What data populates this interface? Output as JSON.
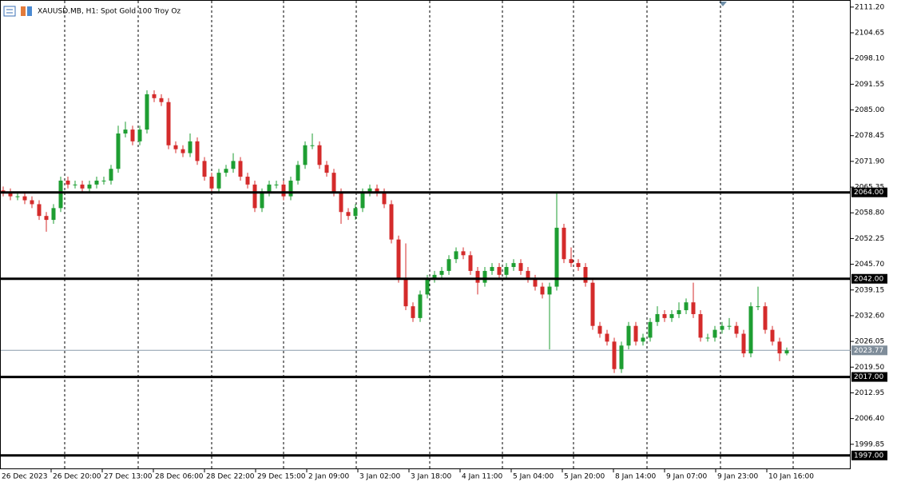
{
  "chart_data": {
    "type": "candlestick",
    "title": "XAUUSD.MB, H1:  Spot Gold 100 Troy Oz",
    "up_color": "#1e9e32",
    "down_color": "#d42b2b",
    "open": [
      2064.5,
      2064,
      2063,
      2063,
      2062,
      2061,
      2058,
      2057,
      2060,
      2067,
      2066,
      2066,
      2065,
      2066,
      2067,
      2067,
      2070,
      2079,
      2080,
      2077,
      2080,
      2089,
      2088,
      2087,
      2076,
      2075,
      2074,
      2077,
      2072,
      2068,
      2065,
      2069,
      2070,
      2072,
      2068,
      2066,
      2060,
      2064,
      2066,
      2066,
      2063,
      2067,
      2071,
      2076,
      2076,
      2071,
      2069,
      2064,
      2059,
      2058,
      2060,
      2064,
      2065,
      2064,
      2061,
      2052,
      2042,
      2035,
      2032,
      2038,
      2042,
      2043,
      2044,
      2047,
      2049,
      2048,
      2044,
      2041,
      2044,
      2045,
      2043,
      2045,
      2046,
      2044,
      2042,
      2040,
      2038,
      2040,
      2055,
      2047,
      2046,
      2045,
      2041,
      2030,
      2028,
      2026,
      2019,
      2025,
      2030,
      2026,
      2027,
      2031,
      2033,
      2032,
      2033,
      2034,
      2036,
      2033,
      2027,
      2027,
      2029,
      2030,
      2030,
      2028,
      2023,
      2035,
      2035,
      2029,
      2026,
      2023
    ],
    "high": [
      2065.5,
      2065,
      2064,
      2064,
      2063,
      2062,
      2059,
      2061,
      2068,
      2068,
      2067,
      2067,
      2067,
      2068,
      2068,
      2071,
      2081,
      2082,
      2081,
      2081,
      2090,
      2090,
      2089,
      2088,
      2077,
      2076,
      2079,
      2078,
      2073,
      2069,
      2070,
      2071,
      2074,
      2073,
      2069,
      2067,
      2065,
      2067,
      2067,
      2067,
      2068,
      2072,
      2077,
      2079,
      2077,
      2072,
      2070,
      2065,
      2060,
      2061,
      2065,
      2066,
      2066,
      2065,
      2062,
      2053,
      2051,
      2036,
      2039,
      2043,
      2044,
      2045,
      2048,
      2050,
      2050,
      2049,
      2045,
      2045,
      2046,
      2046,
      2046,
      2047,
      2047,
      2045,
      2043,
      2041,
      2041,
      2064,
      2056,
      2050,
      2047,
      2046,
      2042,
      2031,
      2029,
      2027,
      2026,
      2031,
      2031,
      2028,
      2032,
      2035,
      2034,
      2034,
      2036,
      2037,
      2041,
      2034,
      2028,
      2030,
      2031,
      2032,
      2031,
      2029,
      2036,
      2040,
      2036,
      2030,
      2027,
      2024.5
    ],
    "low": [
      2063,
      2062,
      2062,
      2061,
      2060,
      2057,
      2054,
      2056,
      2059,
      2065,
      2065,
      2064,
      2064,
      2065,
      2066,
      2066,
      2069,
      2078,
      2076,
      2076,
      2079,
      2087,
      2086,
      2075,
      2074,
      2073,
      2073,
      2071,
      2067,
      2064,
      2064,
      2068,
      2069,
      2067,
      2065,
      2059,
      2059,
      2063,
      2065,
      2062,
      2062,
      2066,
      2070,
      2075,
      2070,
      2068,
      2063,
      2056,
      2057,
      2057,
      2059,
      2063,
      2063,
      2060,
      2051,
      2041,
      2034,
      2031,
      2031,
      2037,
      2041,
      2042,
      2043,
      2046,
      2047,
      2043,
      2038,
      2040,
      2043,
      2042,
      2042,
      2044,
      2043,
      2041,
      2039,
      2037,
      2024,
      2039,
      2046,
      2045,
      2044,
      2040,
      2029,
      2027,
      2025,
      2018,
      2018,
      2024,
      2025,
      2025,
      2026,
      2030,
      2031,
      2031,
      2032,
      2033,
      2032,
      2026,
      2026,
      2026,
      2028,
      2029,
      2027,
      2022,
      2022,
      2034,
      2028,
      2025,
      2021,
      2022.5
    ],
    "close": [
      2064,
      2063,
      2063,
      2062,
      2061,
      2058,
      2057,
      2060,
      2067,
      2066,
      2066,
      2065,
      2066,
      2067,
      2067,
      2070,
      2079,
      2080,
      2077,
      2080,
      2089,
      2088,
      2087,
      2076,
      2075,
      2074,
      2077,
      2072,
      2068,
      2065,
      2069,
      2070,
      2072,
      2068,
      2066,
      2060,
      2064,
      2066,
      2066,
      2063,
      2067,
      2071,
      2076,
      2076,
      2071,
      2069,
      2064,
      2059,
      2058,
      2060,
      2064,
      2065,
      2064,
      2061,
      2052,
      2042,
      2035,
      2032,
      2038,
      2042,
      2043,
      2044,
      2047,
      2049,
      2048,
      2044,
      2041,
      2044,
      2045,
      2043,
      2045,
      2046,
      2044,
      2042,
      2040,
      2038,
      2040,
      2055,
      2047,
      2046,
      2045,
      2041,
      2030,
      2028,
      2026,
      2019,
      2025,
      2030,
      2026,
      2027,
      2031,
      2033,
      2032,
      2033,
      2034,
      2036,
      2033,
      2027,
      2027,
      2029,
      2030,
      2030,
      2028,
      2023,
      2035,
      2035,
      2029,
      2026,
      2023,
      2023.77
    ],
    "ylim": [
      1993.5,
      2113.0
    ],
    "yticks": [
      {
        "value": 2111.2,
        "label": "2111.20"
      },
      {
        "value": 2104.65,
        "label": "2104.65"
      },
      {
        "value": 2098.1,
        "label": "2098.10"
      },
      {
        "value": 2091.55,
        "label": "2091.55"
      },
      {
        "value": 2085,
        "label": "2085.00"
      },
      {
        "value": 2078.45,
        "label": "2078.45"
      },
      {
        "value": 2071.9,
        "label": "2071.90"
      },
      {
        "value": 2065.35,
        "label": "2065.35"
      },
      {
        "value": 2058.8,
        "label": "2058.80"
      },
      {
        "value": 2052.25,
        "label": "2052.25"
      },
      {
        "value": 2045.7,
        "label": "2045.70"
      },
      {
        "value": 2039.15,
        "label": "2039.15"
      },
      {
        "value": 2032.6,
        "label": "2032.60"
      },
      {
        "value": 2026.05,
        "label": "2026.05"
      },
      {
        "value": 2019.5,
        "label": "2019.50"
      },
      {
        "value": 2012.95,
        "label": "2012.95"
      },
      {
        "value": 2006.4,
        "label": "2006.40"
      },
      {
        "value": 1999.85,
        "label": "1999.85"
      }
    ],
    "levels": [
      {
        "value": 2064,
        "label": "2064.00"
      },
      {
        "value": 2042,
        "label": "2042.00"
      },
      {
        "value": 2017,
        "label": "2017.00"
      },
      {
        "value": 1997,
        "label": "1997.00"
      }
    ],
    "current_price": {
      "value": 2023.77,
      "label": "2023.77"
    },
    "x_labels": [
      "26 Dec 2023",
      "26 Dec 20:00",
      "27 Dec 13:00",
      "28 Dec 06:00",
      "28 Dec 22:00",
      "29 Dec 15:00",
      "2 Jan 09:00",
      "3 Jan 02:00",
      "3 Jan 18:00",
      "4 Jan 11:00",
      "5 Jan 04:00",
      "5 Jan 20:00",
      "8 Jan 14:00",
      "9 Jan 07:00",
      "9 Jan 23:00",
      "10 Jan 16:00"
    ]
  }
}
